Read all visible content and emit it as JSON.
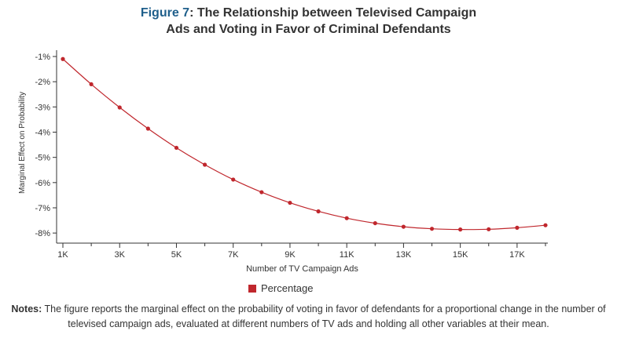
{
  "title": {
    "prefix": "Figure 7",
    "text": ": The Relationship between Televised Campaign",
    "line2": "Ads and Voting in Favor of Criminal Defendants"
  },
  "notes": {
    "label": "Notes:",
    "text": " The figure reports the marginal effect on the probability of voting in favor of defendants for a proportional change in the number of televised campaign ads, evaluated at different numbers of TV ads and holding all other variables at their mean."
  },
  "colors": {
    "series": "#c0272d",
    "title_accent": "#1f5f8b",
    "axis": "#333333"
  },
  "chart_data": {
    "type": "line",
    "xlabel": "Number of TV Campaign Ads",
    "ylabel": "Marginal Effect on Probability",
    "xlim": [
      1000,
      18000
    ],
    "ylim": [
      -8.4,
      -0.75
    ],
    "x_ticks": [
      1000,
      3000,
      5000,
      7000,
      9000,
      11000,
      13000,
      15000,
      17000
    ],
    "x_tick_labels": [
      "1K",
      "3K",
      "5K",
      "7K",
      "9K",
      "11K",
      "13K",
      "15K",
      "17K"
    ],
    "y_ticks": [
      -1,
      -2,
      -3,
      -4,
      -5,
      -6,
      -7,
      -8
    ],
    "y_tick_labels": [
      "-1%",
      "-2%",
      "-3%",
      "-4%",
      "-5%",
      "-6%",
      "-7%",
      "-8%"
    ],
    "legend": "bottom-center",
    "grid": false,
    "series": [
      {
        "name": "Percentage",
        "x": [
          1000,
          2000,
          3000,
          4000,
          5000,
          6000,
          7000,
          8000,
          9000,
          10000,
          11000,
          12000,
          13000,
          14000,
          15000,
          16000,
          17000,
          18000
        ],
        "values": [
          -1.1,
          -2.1,
          -3.02,
          -3.86,
          -4.62,
          -5.29,
          -5.88,
          -6.38,
          -6.8,
          -7.14,
          -7.41,
          -7.61,
          -7.75,
          -7.83,
          -7.86,
          -7.85,
          -7.79,
          -7.69
        ]
      }
    ]
  }
}
